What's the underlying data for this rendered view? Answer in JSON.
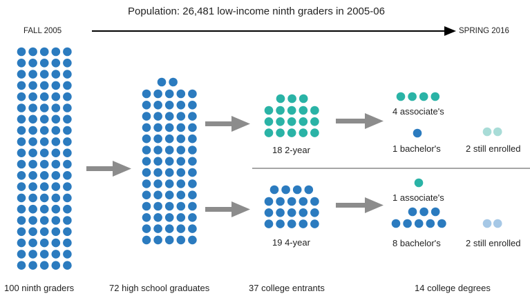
{
  "title": "Population: 26,481 low-income ninth graders in 2005-06",
  "start_label": "FALL 2005",
  "end_label": "SPRING 2016",
  "stages": {
    "ninth": "100 ninth graders",
    "hs": "72 high school graduates",
    "college": "37 college entrants",
    "degrees": "14 college degrees"
  },
  "two_year": {
    "label": "18 2-year",
    "associates": "4 associate's",
    "bachelors": "1 bachelor's",
    "still": "2 still enrolled"
  },
  "four_year": {
    "label": "19 4-year",
    "associates": "1 associate's",
    "bachelors": "8 bachelor's",
    "still": "2 still enrolled"
  },
  "colors": {
    "blue": "#2b7bbf",
    "teal": "#2ab3a6",
    "light_teal": "#a8dcd7",
    "light_blue": "#a6c8e6",
    "arrow": "#8c8c8c"
  }
}
